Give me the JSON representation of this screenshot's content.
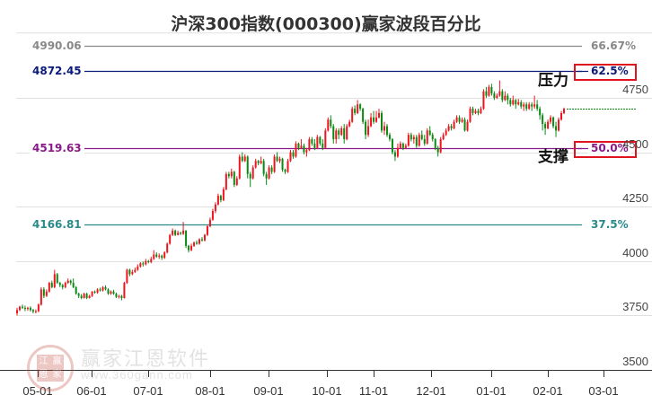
{
  "title": "沪深300指数(000300)赢家波段百分比",
  "colors": {
    "up": "#f0141e",
    "down": "#0a8a14",
    "grid": "#e0e0e0",
    "axis": "#333333",
    "level_6667": "#888888",
    "level_625": "#0a1a7a",
    "level_50": "#8a1a8a",
    "level_375": "#2a8a8a",
    "box": "#e0141e",
    "forecast_line": "#0a8a14"
  },
  "levels": [
    {
      "price_label": "4990.06",
      "pct_label": "66.67%",
      "price": 4990.06,
      "color_key": "level_6667",
      "boxed": false
    },
    {
      "price_label": "4872.45",
      "pct_label": "62.5%",
      "price": 4872.45,
      "color_key": "level_625",
      "boxed": true,
      "zone": "压力"
    },
    {
      "price_label": "4519.63",
      "pct_label": "50.0%",
      "price": 4519.63,
      "color_key": "level_50",
      "boxed": true,
      "zone": "支撑"
    },
    {
      "price_label": "4166.81",
      "pct_label": "37.5%",
      "price": 4166.81,
      "color_key": "level_375",
      "boxed": false
    }
  ],
  "zones": {
    "resistance": "压力",
    "support": "支撑"
  },
  "yaxis": {
    "ticks": [
      "4750",
      "4500",
      "4250",
      "4000",
      "3750",
      "3500"
    ]
  },
  "xaxis": {
    "ticks": [
      "05-01",
      "06-01",
      "07-01",
      "08-01",
      "09-01",
      "10-01",
      "11-01",
      "12-01",
      "01-01",
      "02-01",
      "03-01"
    ]
  },
  "watermark": {
    "text": "赢家江恩软件",
    "url": "www.360gann.com",
    "seal": [
      "江",
      "赢",
      "恩",
      "家"
    ]
  },
  "chart_data": {
    "type": "candlestick",
    "title": "沪深300指数(000300)赢家波段百分比",
    "xlabel": "",
    "ylabel": "",
    "ylim": [
      3500,
      5050
    ],
    "x_ticks": [
      "05-01",
      "06-01",
      "07-01",
      "08-01",
      "09-01",
      "10-01",
      "11-01",
      "12-01",
      "01-01",
      "02-01",
      "03-01"
    ],
    "y_ticks": [
      3500,
      3750,
      4000,
      4250,
      4500,
      4750
    ],
    "horizontal_levels": [
      {
        "price": 4990.06,
        "percent": "66.67%"
      },
      {
        "price": 4872.45,
        "percent": "62.5%",
        "annotation": "压力"
      },
      {
        "price": 4519.63,
        "percent": "50.0%",
        "annotation": "支撑"
      },
      {
        "price": 4166.81,
        "percent": "37.5%"
      }
    ],
    "grid": true,
    "approx_close_path": [
      {
        "date": "04-20",
        "close": 3760
      },
      {
        "date": "05-01",
        "close": 3780
      },
      {
        "date": "05-10",
        "close": 3900
      },
      {
        "date": "05-15",
        "close": 3920
      },
      {
        "date": "05-25",
        "close": 3830
      },
      {
        "date": "06-01",
        "close": 3840
      },
      {
        "date": "06-15",
        "close": 3870
      },
      {
        "date": "06-25",
        "close": 3830
      },
      {
        "date": "07-01",
        "close": 3950
      },
      {
        "date": "07-15",
        "close": 4000
      },
      {
        "date": "07-25",
        "close": 4130
      },
      {
        "date": "08-01",
        "close": 4050
      },
      {
        "date": "08-15",
        "close": 4120
      },
      {
        "date": "08-25",
        "close": 4280
      },
      {
        "date": "09-01",
        "close": 4500
      },
      {
        "date": "09-15",
        "close": 4400
      },
      {
        "date": "09-25",
        "close": 4560
      },
      {
        "date": "10-01",
        "close": 4650
      },
      {
        "date": "10-15",
        "close": 4620
      },
      {
        "date": "10-25",
        "close": 4720
      },
      {
        "date": "11-01",
        "close": 4620
      },
      {
        "date": "11-15",
        "close": 4640
      },
      {
        "date": "11-25",
        "close": 4490
      },
      {
        "date": "12-01",
        "close": 4560
      },
      {
        "date": "12-15",
        "close": 4510
      },
      {
        "date": "12-25",
        "close": 4640
      },
      {
        "date": "01-01",
        "close": 4690
      },
      {
        "date": "01-10",
        "close": 4800
      },
      {
        "date": "01-20",
        "close": 4750
      },
      {
        "date": "02-01",
        "close": 4720
      },
      {
        "date": "02-10",
        "close": 4700
      }
    ],
    "candles_ohlc": [
      [
        3760,
        3775,
        3785,
        3750
      ],
      [
        3775,
        3790,
        3795,
        3770
      ],
      [
        3790,
        3785,
        3800,
        3780
      ],
      [
        3785,
        3780,
        3795,
        3770
      ],
      [
        3780,
        3785,
        3790,
        3772
      ],
      [
        3785,
        3775,
        3792,
        3768
      ],
      [
        3775,
        3768,
        3780,
        3760
      ],
      [
        3768,
        3770,
        3778,
        3760
      ],
      [
        3770,
        3800,
        3805,
        3765
      ],
      [
        3800,
        3870,
        3880,
        3795
      ],
      [
        3870,
        3840,
        3880,
        3830
      ],
      [
        3840,
        3860,
        3870,
        3835
      ],
      [
        3860,
        3900,
        3905,
        3855
      ],
      [
        3900,
        3880,
        3910,
        3875
      ],
      [
        3880,
        3940,
        3960,
        3875
      ],
      [
        3940,
        3900,
        3945,
        3895
      ],
      [
        3900,
        3890,
        3905,
        3880
      ],
      [
        3890,
        3880,
        3895,
        3870
      ],
      [
        3880,
        3900,
        3905,
        3875
      ],
      [
        3900,
        3910,
        3920,
        3895
      ],
      [
        3910,
        3900,
        3915,
        3890
      ],
      [
        3900,
        3880,
        3920,
        3875
      ],
      [
        3880,
        3850,
        3885,
        3845
      ],
      [
        3850,
        3840,
        3855,
        3830
      ],
      [
        3840,
        3830,
        3848,
        3825
      ],
      [
        3830,
        3850,
        3855,
        3828
      ],
      [
        3850,
        3830,
        3855,
        3825
      ],
      [
        3830,
        3840,
        3845,
        3828
      ],
      [
        3840,
        3860,
        3862,
        3835
      ],
      [
        3860,
        3855,
        3865,
        3850
      ],
      [
        3855,
        3870,
        3875,
        3850
      ],
      [
        3870,
        3865,
        3878,
        3860
      ],
      [
        3865,
        3880,
        3885,
        3860
      ],
      [
        3880,
        3870,
        3888,
        3865
      ],
      [
        3870,
        3850,
        3875,
        3845
      ],
      [
        3850,
        3860,
        3865,
        3845
      ],
      [
        3860,
        3850,
        3868,
        3845
      ],
      [
        3850,
        3835,
        3855,
        3830
      ],
      [
        3835,
        3840,
        3845,
        3828
      ],
      [
        3840,
        3830,
        3845,
        3820
      ],
      [
        3830,
        3900,
        3905,
        3828
      ],
      [
        3900,
        3960,
        3965,
        3895
      ],
      [
        3960,
        3940,
        3965,
        3930
      ],
      [
        3940,
        3950,
        3960,
        3935
      ],
      [
        3950,
        3960,
        3970,
        3945
      ],
      [
        3960,
        3975,
        3985,
        3955
      ],
      [
        3975,
        3990,
        3995,
        3970
      ],
      [
        3990,
        3985,
        3998,
        3975
      ],
      [
        3985,
        4000,
        4010,
        3980
      ],
      [
        4000,
        3995,
        4005,
        3990
      ],
      [
        3995,
        4010,
        4020,
        3990
      ],
      [
        4010,
        4030,
        4050,
        4005
      ],
      [
        4030,
        4020,
        4040,
        4015
      ],
      [
        4020,
        4025,
        4035,
        4010
      ],
      [
        4025,
        4015,
        4030,
        4005
      ],
      [
        4015,
        4040,
        4045,
        4010
      ],
      [
        4040,
        4080,
        4085,
        4035
      ],
      [
        4080,
        4120,
        4125,
        4075
      ],
      [
        4120,
        4140,
        4150,
        4115
      ],
      [
        4140,
        4120,
        4145,
        4115
      ],
      [
        4120,
        4130,
        4140,
        4118
      ],
      [
        4130,
        4125,
        4135,
        4120
      ],
      [
        4125,
        4140,
        4180,
        4120
      ],
      [
        4140,
        4070,
        4142,
        4060
      ],
      [
        4070,
        4050,
        4075,
        4040
      ],
      [
        4050,
        4070,
        4080,
        4045
      ],
      [
        4070,
        4085,
        4090,
        4065
      ],
      [
        4085,
        4080,
        4095,
        4075
      ],
      [
        4080,
        4100,
        4105,
        4075
      ],
      [
        4100,
        4095,
        4110,
        4090
      ],
      [
        4095,
        4120,
        4125,
        4090
      ],
      [
        4120,
        4160,
        4165,
        4115
      ],
      [
        4160,
        4190,
        4200,
        4155
      ],
      [
        4190,
        4230,
        4240,
        4185
      ],
      [
        4230,
        4260,
        4270,
        4220
      ],
      [
        4260,
        4300,
        4310,
        4255
      ],
      [
        4300,
        4280,
        4305,
        4270
      ],
      [
        4280,
        4330,
        4340,
        4275
      ],
      [
        4330,
        4400,
        4410,
        4325
      ],
      [
        4400,
        4390,
        4410,
        4380
      ],
      [
        4390,
        4410,
        4425,
        4380
      ],
      [
        4410,
        4350,
        4415,
        4340
      ],
      [
        4350,
        4380,
        4390,
        4345
      ],
      [
        4380,
        4480,
        4490,
        4375
      ],
      [
        4480,
        4460,
        4500,
        4455
      ],
      [
        4460,
        4480,
        4490,
        4455
      ],
      [
        4480,
        4400,
        4485,
        4380
      ],
      [
        4400,
        4380,
        4410,
        4340
      ],
      [
        4380,
        4430,
        4440,
        4375
      ],
      [
        4430,
        4460,
        4470,
        4425
      ],
      [
        4460,
        4450,
        4465,
        4440
      ],
      [
        4450,
        4460,
        4480,
        4445
      ],
      [
        4460,
        4400,
        4470,
        4390
      ],
      [
        4400,
        4380,
        4410,
        4350
      ],
      [
        4380,
        4430,
        4440,
        4375
      ],
      [
        4430,
        4410,
        4440,
        4400
      ],
      [
        4410,
        4480,
        4490,
        4405
      ],
      [
        4480,
        4460,
        4500,
        4455
      ],
      [
        4460,
        4470,
        4480,
        4450
      ],
      [
        4470,
        4420,
        4475,
        4410
      ],
      [
        4420,
        4410,
        4425,
        4400
      ],
      [
        4410,
        4460,
        4470,
        4405
      ],
      [
        4460,
        4500,
        4510,
        4455
      ],
      [
        4500,
        4480,
        4510,
        4470
      ],
      [
        4480,
        4540,
        4550,
        4475
      ],
      [
        4540,
        4520,
        4545,
        4510
      ],
      [
        4520,
        4530,
        4560,
        4515
      ],
      [
        4530,
        4500,
        4540,
        4490
      ],
      [
        4500,
        4510,
        4520,
        4480
      ],
      [
        4510,
        4560,
        4570,
        4505
      ],
      [
        4560,
        4540,
        4570,
        4530
      ],
      [
        4540,
        4520,
        4560,
        4510
      ],
      [
        4520,
        4570,
        4580,
        4515
      ],
      [
        4570,
        4540,
        4575,
        4530
      ],
      [
        4540,
        4520,
        4560,
        4510
      ],
      [
        4520,
        4600,
        4610,
        4515
      ],
      [
        4600,
        4650,
        4660,
        4595
      ],
      [
        4650,
        4620,
        4670,
        4610
      ],
      [
        4620,
        4560,
        4630,
        4540
      ],
      [
        4560,
        4600,
        4610,
        4540
      ],
      [
        4600,
        4580,
        4610,
        4560
      ],
      [
        4580,
        4610,
        4620,
        4575
      ],
      [
        4610,
        4560,
        4630,
        4540
      ],
      [
        4560,
        4620,
        4630,
        4555
      ],
      [
        4620,
        4640,
        4650,
        4615
      ],
      [
        4640,
        4700,
        4710,
        4635
      ],
      [
        4700,
        4680,
        4715,
        4670
      ],
      [
        4680,
        4720,
        4740,
        4675
      ],
      [
        4720,
        4700,
        4725,
        4690
      ],
      [
        4700,
        4640,
        4705,
        4630
      ],
      [
        4640,
        4580,
        4650,
        4560
      ],
      [
        4580,
        4620,
        4650,
        4570
      ],
      [
        4620,
        4660,
        4680,
        4615
      ],
      [
        4660,
        4640,
        4690,
        4630
      ],
      [
        4640,
        4660,
        4690,
        4635
      ],
      [
        4660,
        4680,
        4700,
        4655
      ],
      [
        4680,
        4600,
        4690,
        4590
      ],
      [
        4600,
        4620,
        4640,
        4580
      ],
      [
        4620,
        4580,
        4630,
        4570
      ],
      [
        4580,
        4560,
        4590,
        4550
      ],
      [
        4560,
        4500,
        4565,
        4490
      ],
      [
        4500,
        4480,
        4510,
        4460
      ],
      [
        4480,
        4520,
        4540,
        4475
      ],
      [
        4520,
        4540,
        4550,
        4515
      ],
      [
        4540,
        4520,
        4545,
        4510
      ],
      [
        4520,
        4530,
        4540,
        4515
      ],
      [
        4530,
        4580,
        4590,
        4525
      ],
      [
        4580,
        4560,
        4590,
        4550
      ],
      [
        4560,
        4570,
        4580,
        4540
      ],
      [
        4570,
        4530,
        4580,
        4520
      ],
      [
        4530,
        4580,
        4590,
        4525
      ],
      [
        4580,
        4560,
        4600,
        4555
      ],
      [
        4560,
        4540,
        4580,
        4530
      ],
      [
        4540,
        4600,
        4610,
        4535
      ],
      [
        4600,
        4580,
        4620,
        4575
      ],
      [
        4580,
        4560,
        4590,
        4550
      ],
      [
        4560,
        4520,
        4565,
        4510
      ],
      [
        4520,
        4500,
        4530,
        4480
      ],
      [
        4500,
        4560,
        4570,
        4495
      ],
      [
        4560,
        4580,
        4590,
        4555
      ],
      [
        4580,
        4600,
        4610,
        4575
      ],
      [
        4600,
        4620,
        4630,
        4595
      ],
      [
        4620,
        4610,
        4630,
        4600
      ],
      [
        4610,
        4640,
        4650,
        4605
      ],
      [
        4640,
        4660,
        4670,
        4635
      ],
      [
        4660,
        4640,
        4670,
        4630
      ],
      [
        4640,
        4650,
        4660,
        4635
      ],
      [
        4650,
        4600,
        4660,
        4595
      ],
      [
        4600,
        4640,
        4650,
        4595
      ],
      [
        4640,
        4700,
        4710,
        4635
      ],
      [
        4700,
        4680,
        4710,
        4670
      ],
      [
        4680,
        4690,
        4700,
        4675
      ],
      [
        4690,
        4680,
        4700,
        4670
      ],
      [
        4680,
        4700,
        4710,
        4675
      ],
      [
        4700,
        4780,
        4790,
        4695
      ],
      [
        4780,
        4760,
        4800,
        4750
      ],
      [
        4760,
        4800,
        4810,
        4755
      ],
      [
        4800,
        4770,
        4815,
        4760
      ],
      [
        4770,
        4750,
        4780,
        4740
      ],
      [
        4750,
        4760,
        4770,
        4745
      ],
      [
        4760,
        4780,
        4830,
        4755
      ],
      [
        4780,
        4740,
        4790,
        4730
      ],
      [
        4740,
        4760,
        4780,
        4735
      ],
      [
        4760,
        4740,
        4770,
        4720
      ],
      [
        4740,
        4720,
        4750,
        4710
      ],
      [
        4720,
        4740,
        4760,
        4715
      ],
      [
        4740,
        4720,
        4745,
        4700
      ],
      [
        4720,
        4730,
        4745,
        4715
      ],
      [
        4730,
        4710,
        4740,
        4700
      ],
      [
        4710,
        4720,
        4730,
        4690
      ],
      [
        4720,
        4700,
        4730,
        4690
      ],
      [
        4700,
        4720,
        4730,
        4695
      ],
      [
        4720,
        4710,
        4730,
        4690
      ],
      [
        4710,
        4720,
        4760,
        4700
      ],
      [
        4720,
        4700,
        4740,
        4690
      ],
      [
        4700,
        4670,
        4710,
        4650
      ],
      [
        4670,
        4630,
        4680,
        4600
      ],
      [
        4630,
        4610,
        4640,
        4580
      ],
      [
        4610,
        4640,
        4650,
        4605
      ],
      [
        4640,
        4660,
        4670,
        4630
      ],
      [
        4660,
        4620,
        4665,
        4610
      ],
      [
        4620,
        4600,
        4640,
        4570
      ],
      [
        4600,
        4650,
        4660,
        4595
      ],
      [
        4650,
        4680,
        4690,
        4645
      ],
      [
        4680,
        4700,
        4705,
        4675
      ]
    ],
    "forecast_flat_line": {
      "from_price": 4700,
      "style": "dashed",
      "color": "#0a8a14"
    }
  }
}
